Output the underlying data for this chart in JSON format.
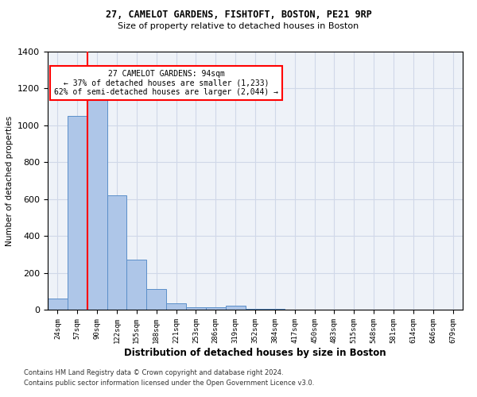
{
  "title1": "27, CAMELOT GARDENS, FISHTOFT, BOSTON, PE21 9RP",
  "title2": "Size of property relative to detached houses in Boston",
  "xlabel": "Distribution of detached houses by size in Boston",
  "ylabel": "Number of detached properties",
  "bar_labels": [
    "24sqm",
    "57sqm",
    "90sqm",
    "122sqm",
    "155sqm",
    "188sqm",
    "221sqm",
    "253sqm",
    "286sqm",
    "319sqm",
    "352sqm",
    "384sqm",
    "417sqm",
    "450sqm",
    "483sqm",
    "515sqm",
    "548sqm",
    "581sqm",
    "614sqm",
    "646sqm",
    "679sqm"
  ],
  "bar_values": [
    60,
    1050,
    1150,
    620,
    270,
    110,
    35,
    15,
    15,
    20,
    5,
    3,
    2,
    1,
    0,
    1,
    0,
    0,
    0,
    0,
    0
  ],
  "bar_color": "#aec6e8",
  "bar_edge_color": "#5b8fc9",
  "vline_x_index": 2,
  "vline_color": "red",
  "annotation_text": "27 CAMELOT GARDENS: 94sqm\n← 37% of detached houses are smaller (1,233)\n62% of semi-detached houses are larger (2,044) →",
  "annotation_box_color": "white",
  "annotation_box_edge": "red",
  "ylim": [
    0,
    1400
  ],
  "yticks": [
    0,
    200,
    400,
    600,
    800,
    1000,
    1200,
    1400
  ],
  "grid_color": "#d0d8e8",
  "bg_color": "#eef2f8",
  "footer1": "Contains HM Land Registry data © Crown copyright and database right 2024.",
  "footer2": "Contains public sector information licensed under the Open Government Licence v3.0."
}
